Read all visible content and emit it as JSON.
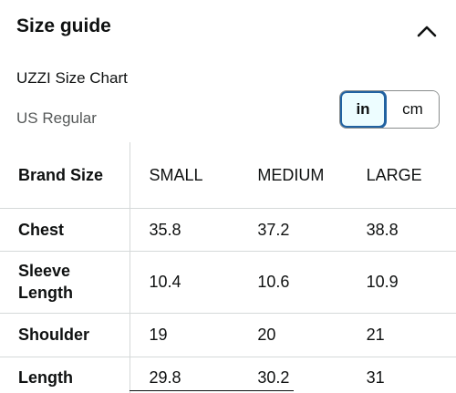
{
  "header": {
    "title": "Size guide",
    "toggle_icon": "chevron-up-icon"
  },
  "chart": {
    "name": "UZZI Size Chart",
    "region": "US Regular"
  },
  "units": {
    "options": [
      "in",
      "cm"
    ],
    "selected": "in"
  },
  "table": {
    "header_label": "Brand Size",
    "columns": [
      "SMALL",
      "MEDIUM",
      "LARGE"
    ],
    "rows": [
      {
        "label": "Chest",
        "values": [
          "35.8",
          "37.2",
          "38.8"
        ]
      },
      {
        "label": "Sleeve Length",
        "values": [
          "10.4",
          "10.6",
          "10.9"
        ]
      },
      {
        "label": "Shoulder",
        "values": [
          "19",
          "20",
          "21"
        ]
      },
      {
        "label": "Length",
        "values": [
          "29.8",
          "30.2",
          "31"
        ]
      }
    ]
  },
  "colors": {
    "accent": "#2162a1",
    "selected_bg": "#edfdff",
    "muted_text": "#565959",
    "divider": "#d5d9d9"
  }
}
